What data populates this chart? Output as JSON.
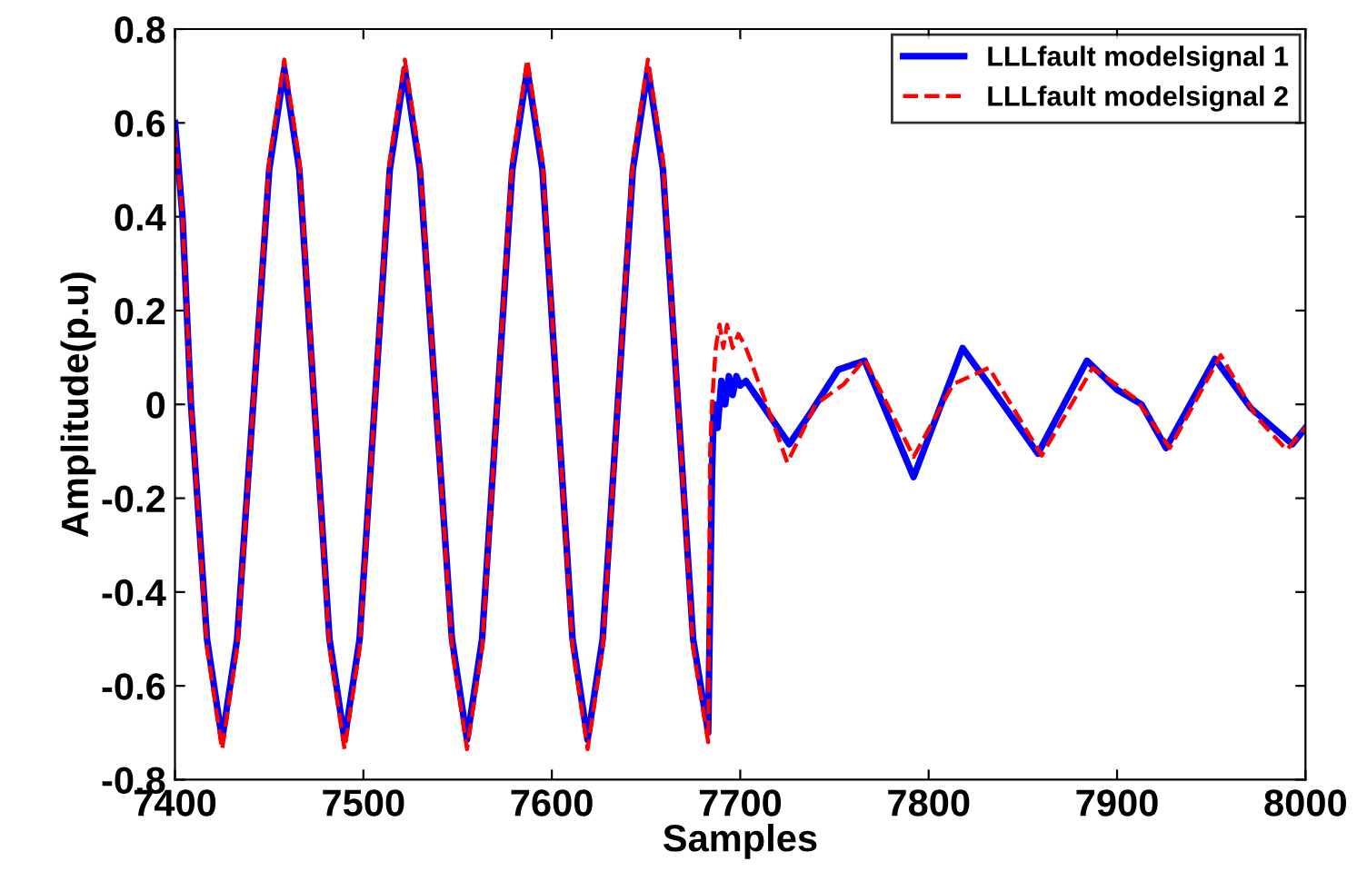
{
  "chart_data": {
    "type": "line",
    "xlabel": "Samples",
    "ylabel": "Amplitude(p.u)",
    "xlim": [
      7400,
      8000
    ],
    "xticks": [
      7400,
      7500,
      7600,
      7700,
      7800,
      7900,
      8000
    ],
    "ylim": [
      -0.8,
      0.8
    ],
    "yticks": [
      -0.8,
      -0.6,
      -0.4,
      -0.2,
      0,
      0.2,
      0.4,
      0.6,
      0.8
    ],
    "grid": false,
    "legend": "top right",
    "marker": "none",
    "series": [
      {
        "name": "LLLfault modelsignal 1",
        "color": "#0000ff",
        "line_style": "solid",
        "x": [
          7400,
          7404,
          7408.5,
          7417,
          7425,
          7433,
          7441.5,
          7450,
          7458,
          7466,
          7474,
          7482,
          7490,
          7498,
          7506,
          7514,
          7522,
          7530,
          7538.5,
          7547,
          7555,
          7563,
          7571,
          7579,
          7587,
          7595,
          7603,
          7611,
          7619,
          7627,
          7635,
          7643,
          7651,
          7659,
          7667,
          7675,
          7683,
          7685,
          7686,
          7688,
          7690,
          7692,
          7694,
          7696,
          7698,
          7700,
          7703,
          7726,
          7737,
          7752,
          7766,
          7792,
          7818,
          7832,
          7858,
          7884,
          7900,
          7913,
          7926,
          7952,
          7971,
          7993,
          8000
        ],
        "values": [
          0.6,
          0.4,
          0,
          -0.5,
          -0.715,
          -0.5,
          0,
          0.5,
          0.715,
          0.5,
          0,
          -0.5,
          -0.715,
          -0.5,
          0,
          0.5,
          0.715,
          0.5,
          0,
          -0.5,
          -0.715,
          -0.5,
          0,
          0.5,
          0.715,
          0.5,
          0,
          -0.5,
          -0.715,
          -0.5,
          0,
          0.5,
          0.715,
          0.5,
          0,
          -0.5,
          -0.7,
          -0.15,
          0,
          -0.05,
          0.05,
          0,
          0.06,
          0.02,
          0.06,
          0.04,
          0.05,
          -0.085,
          -0.02,
          0.074,
          0.093,
          -0.155,
          0.12,
          0.043,
          -0.105,
          0.093,
          0.031,
          0,
          -0.093,
          0.097,
          -0.008,
          -0.085,
          -0.05
        ]
      },
      {
        "name": "LLLfault modelsignal 2",
        "color": "#ff0000",
        "line_style": "dashed",
        "x": [
          7400,
          7404,
          7408.5,
          7417,
          7425,
          7433,
          7441.5,
          7450,
          7458,
          7466,
          7474,
          7482,
          7490,
          7498,
          7506,
          7514,
          7522,
          7530,
          7538.5,
          7547,
          7555,
          7563,
          7571,
          7579,
          7587,
          7595,
          7603,
          7611,
          7619,
          7627,
          7635,
          7643,
          7651,
          7659,
          7667,
          7675,
          7683,
          7684,
          7685,
          7687,
          7689,
          7691,
          7693,
          7696,
          7699,
          7702,
          7705,
          7725,
          7740,
          7755,
          7766,
          7792,
          7813,
          7832,
          7860,
          7887,
          7910,
          7928,
          7955,
          7974,
          7990,
          8000
        ],
        "values": [
          0.58,
          0.4,
          0,
          -0.52,
          -0.735,
          -0.52,
          0,
          0.52,
          0.735,
          0.52,
          0,
          -0.52,
          -0.735,
          -0.52,
          0,
          0.52,
          0.735,
          0.52,
          0,
          -0.52,
          -0.735,
          -0.52,
          0,
          0.52,
          0.735,
          0.52,
          0,
          -0.52,
          -0.735,
          -0.52,
          0,
          0.52,
          0.735,
          0.52,
          0,
          -0.52,
          -0.72,
          -0.1,
          0,
          0.12,
          0.17,
          0.12,
          0.17,
          0.12,
          0.15,
          0.13,
          0.1,
          -0.124,
          0,
          0.043,
          0.097,
          -0.112,
          0.043,
          0.078,
          -0.109,
          0.078,
          0.012,
          -0.093,
          0.105,
          -0.027,
          -0.097,
          -0.05
        ]
      }
    ]
  }
}
